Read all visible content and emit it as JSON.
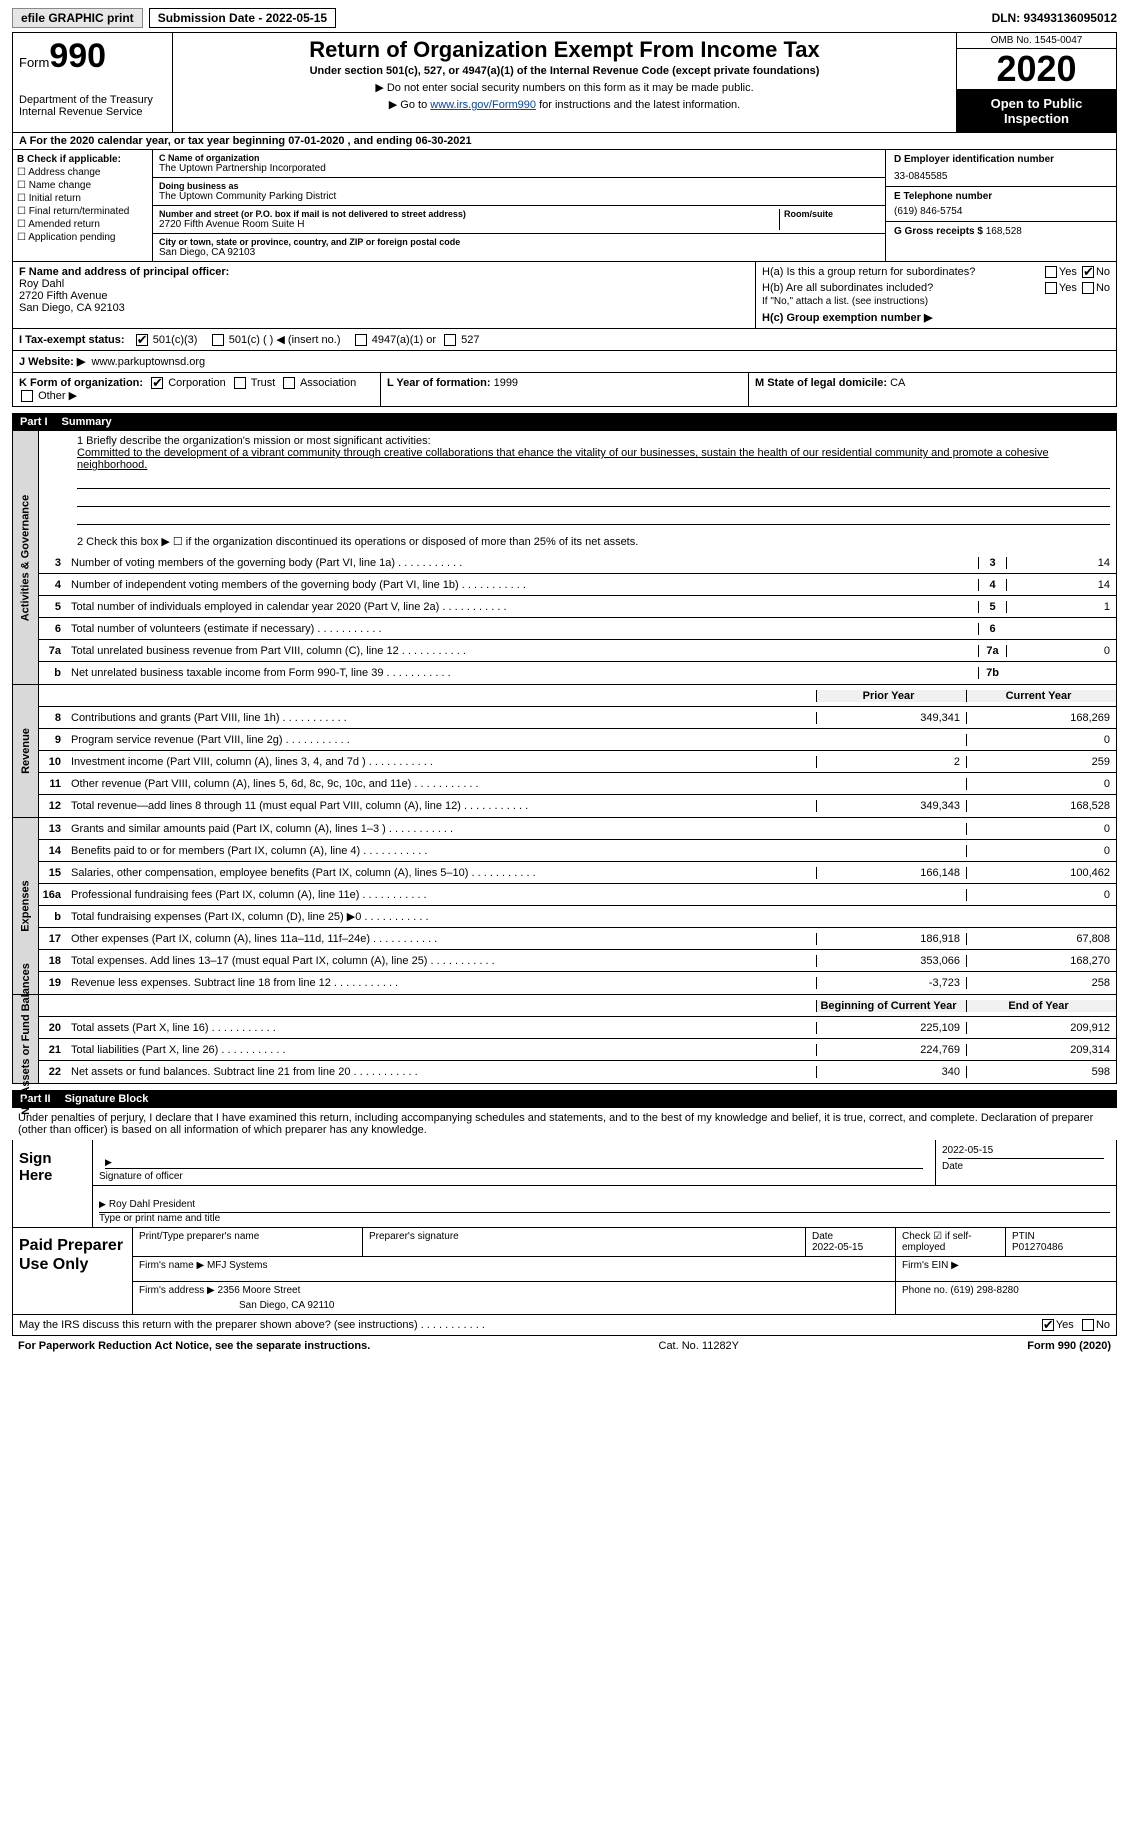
{
  "topbar": {
    "efile": "efile GRAPHIC print",
    "submission": "Submission Date - 2022-05-15",
    "dln": "DLN: 93493136095012"
  },
  "header": {
    "form_prefix": "Form",
    "form_number": "990",
    "dept": "Department of the Treasury\nInternal Revenue Service",
    "title": "Return of Organization Exempt From Income Tax",
    "subtitle": "Under section 501(c), 527, or 4947(a)(1) of the Internal Revenue Code (except private foundations)",
    "note1": "▶ Do not enter social security numbers on this form as it may be made public.",
    "note2_pre": "▶ Go to ",
    "note2_link": "www.irs.gov/Form990",
    "note2_post": " for instructions and the latest information.",
    "omb": "OMB No. 1545-0047",
    "year": "2020",
    "otp": "Open to Public Inspection"
  },
  "rowA": "A For the 2020 calendar year, or tax year beginning 07-01-2020   , and ending 06-30-2021",
  "B": {
    "label": "B Check if applicable:",
    "opts": [
      "Address change",
      "Name change",
      "Initial return",
      "Final return/terminated",
      "Amended return",
      "Application pending"
    ]
  },
  "C": {
    "name_lbl": "C Name of organization",
    "name": "The Uptown Partnership Incorporated",
    "dba_lbl": "Doing business as",
    "dba": "The Uptown Community Parking District",
    "addr_lbl": "Number and street (or P.O. box if mail is not delivered to street address)",
    "room_lbl": "Room/suite",
    "addr": "2720 Fifth Avenue Room Suite H",
    "city_lbl": "City or town, state or province, country, and ZIP or foreign postal code",
    "city": "San Diego, CA  92103"
  },
  "D": {
    "lbl": "D Employer identification number",
    "val": "33-0845585"
  },
  "E": {
    "lbl": "E Telephone number",
    "val": "(619) 846-5754"
  },
  "G": {
    "lbl": "G Gross receipts $",
    "val": "168,528"
  },
  "F": {
    "lbl": "F  Name and address of principal officer:",
    "name": "Roy Dahl",
    "addr1": "2720 Fifth Avenue",
    "addr2": "San Diego, CA  92103"
  },
  "H": {
    "a": "H(a)  Is this a group return for subordinates?",
    "b": "H(b)  Are all subordinates included?",
    "bnote": "If \"No,\" attach a list. (see instructions)",
    "c": "H(c)  Group exemption number ▶",
    "yes": "Yes",
    "no": "No"
  },
  "I": {
    "lbl": "I    Tax-exempt status:",
    "o1": "501(c)(3)",
    "o2": "501(c) (  ) ◀ (insert no.)",
    "o3": "4947(a)(1) or",
    "o4": "527"
  },
  "J": {
    "lbl": "J   Website: ▶",
    "val": "www.parkuptownsd.org"
  },
  "K": {
    "lbl": "K Form of organization:",
    "o1": "Corporation",
    "o2": "Trust",
    "o3": "Association",
    "o4": "Other ▶"
  },
  "L": {
    "lbl": "L Year of formation:",
    "val": "1999"
  },
  "M": {
    "lbl": "M State of legal domicile:",
    "val": "CA"
  },
  "part1": {
    "n": "Part I",
    "t": "Summary"
  },
  "mission": {
    "lbl": "1   Briefly describe the organization's mission or most significant activities:",
    "txt": "Committed to the development of a vibrant community through creative collaborations that ehance the vitality of our businesses, sustain the health of our residential community and promote a cohesive neighborhood."
  },
  "line2": "2   Check this box ▶ ☐  if the organization discontinued its operations or disposed of more than 25% of its net assets.",
  "gov_rows": [
    {
      "n": "3",
      "t": "Number of voting members of the governing body (Part VI, line 1a)",
      "bn": "3",
      "v": "14"
    },
    {
      "n": "4",
      "t": "Number of independent voting members of the governing body (Part VI, line 1b)",
      "bn": "4",
      "v": "14"
    },
    {
      "n": "5",
      "t": "Total number of individuals employed in calendar year 2020 (Part V, line 2a)",
      "bn": "5",
      "v": "1"
    },
    {
      "n": "6",
      "t": "Total number of volunteers (estimate if necessary)",
      "bn": "6",
      "v": ""
    },
    {
      "n": "7a",
      "t": "Total unrelated business revenue from Part VIII, column (C), line 12",
      "bn": "7a",
      "v": "0"
    },
    {
      "n": "b",
      "t": "Net unrelated business taxable income from Form 990-T, line 39",
      "bn": "7b",
      "v": ""
    }
  ],
  "col_hdr": {
    "py": "Prior Year",
    "cy": "Current Year"
  },
  "rev_rows": [
    {
      "n": "8",
      "t": "Contributions and grants (Part VIII, line 1h)",
      "py": "349,341",
      "cy": "168,269"
    },
    {
      "n": "9",
      "t": "Program service revenue (Part VIII, line 2g)",
      "py": "",
      "cy": "0"
    },
    {
      "n": "10",
      "t": "Investment income (Part VIII, column (A), lines 3, 4, and 7d )",
      "py": "2",
      "cy": "259"
    },
    {
      "n": "11",
      "t": "Other revenue (Part VIII, column (A), lines 5, 6d, 8c, 9c, 10c, and 11e)",
      "py": "",
      "cy": "0"
    },
    {
      "n": "12",
      "t": "Total revenue—add lines 8 through 11 (must equal Part VIII, column (A), line 12)",
      "py": "349,343",
      "cy": "168,528"
    }
  ],
  "exp_rows": [
    {
      "n": "13",
      "t": "Grants and similar amounts paid (Part IX, column (A), lines 1–3 )",
      "py": "",
      "cy": "0"
    },
    {
      "n": "14",
      "t": "Benefits paid to or for members (Part IX, column (A), line 4)",
      "py": "",
      "cy": "0"
    },
    {
      "n": "15",
      "t": "Salaries, other compensation, employee benefits (Part IX, column (A), lines 5–10)",
      "py": "166,148",
      "cy": "100,462"
    },
    {
      "n": "16a",
      "t": "Professional fundraising fees (Part IX, column (A), line 11e)",
      "py": "",
      "cy": "0"
    },
    {
      "n": "b",
      "t": "Total fundraising expenses (Part IX, column (D), line 25) ▶0",
      "py": "GREY",
      "cy": "GREY"
    },
    {
      "n": "17",
      "t": "Other expenses (Part IX, column (A), lines 11a–11d, 11f–24e)",
      "py": "186,918",
      "cy": "67,808"
    },
    {
      "n": "18",
      "t": "Total expenses. Add lines 13–17 (must equal Part IX, column (A), line 25)",
      "py": "353,066",
      "cy": "168,270"
    },
    {
      "n": "19",
      "t": "Revenue less expenses. Subtract line 18 from line 12",
      "py": "-3,723",
      "cy": "258"
    }
  ],
  "na_hdr": {
    "py": "Beginning of Current Year",
    "cy": "End of Year"
  },
  "na_rows": [
    {
      "n": "20",
      "t": "Total assets (Part X, line 16)",
      "py": "225,109",
      "cy": "209,912"
    },
    {
      "n": "21",
      "t": "Total liabilities (Part X, line 26)",
      "py": "224,769",
      "cy": "209,314"
    },
    {
      "n": "22",
      "t": "Net assets or fund balances. Subtract line 21 from line 20",
      "py": "340",
      "cy": "598"
    }
  ],
  "part2": {
    "n": "Part II",
    "t": "Signature Block"
  },
  "sig": {
    "penalties": "Under penalties of perjury, I declare that I have examined this return, including accompanying schedules and statements, and to the best of my knowledge and belief, it is true, correct, and complete. Declaration of preparer (other than officer) is based on all information of which preparer has any knowledge.",
    "sign_here": "Sign Here",
    "sig_officer": "Signature of officer",
    "date": "Date",
    "date_val": "2022-05-15",
    "officer_name": "Roy Dahl  President",
    "type_name": "Type or print name and title"
  },
  "prep": {
    "label": "Paid Preparer Use Only",
    "h1": "Print/Type preparer's name",
    "h2": "Preparer's signature",
    "h3": "Date",
    "h3v": "2022-05-15",
    "h4": "Check ☑ if self-employed",
    "h5": "PTIN",
    "h5v": "P01270486",
    "firm_lbl": "Firm's name    ▶",
    "firm": "MFJ Systems",
    "ein_lbl": "Firm's EIN ▶",
    "addr_lbl": "Firm's address ▶",
    "addr": "2356 Moore Street",
    "addr2": "San Diego, CA  92110",
    "phone_lbl": "Phone no.",
    "phone": "(619) 298-8280"
  },
  "discuss": {
    "txt": "May the IRS discuss this return with the preparer shown above? (see instructions)",
    "yes": "Yes",
    "no": "No"
  },
  "footer": {
    "l": "For Paperwork Reduction Act Notice, see the separate instructions.",
    "m": "Cat. No. 11282Y",
    "r": "Form 990 (2020)"
  },
  "vtabs": {
    "gov": "Activities & Governance",
    "rev": "Revenue",
    "exp": "Expenses",
    "na": "Net Assets or Fund Balances"
  }
}
